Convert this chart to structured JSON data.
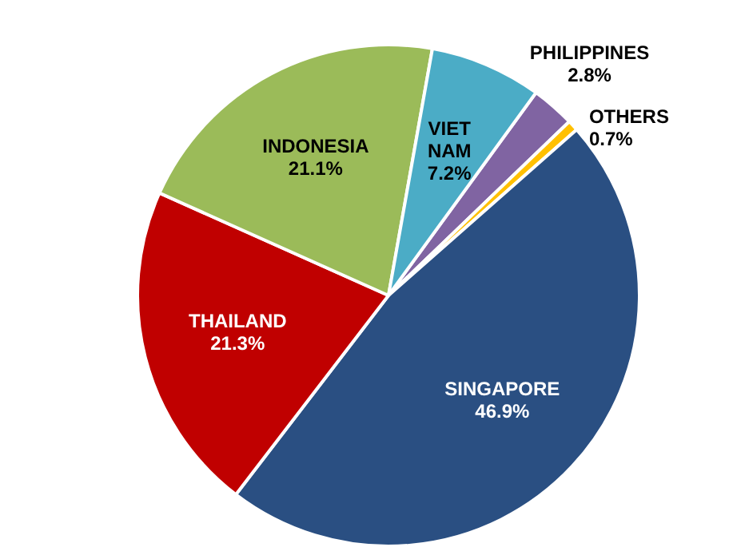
{
  "chart_data": {
    "type": "pie",
    "categories": [
      "PHILIPPINES",
      "OTHERS",
      "SINGAPORE",
      "THAILAND",
      "INDONESIA",
      "VIET NAM"
    ],
    "values": [
      2.8,
      0.7,
      46.9,
      21.3,
      21.1,
      7.2
    ],
    "colors": [
      "#8064a2",
      "#ffc000",
      "#2a4f82",
      "#c00000",
      "#9bbb59",
      "#4bacc6"
    ],
    "value_labels": [
      "2.8%",
      "0.7%",
      "46.9%",
      "21.3%",
      "21.1%",
      "7.2%"
    ],
    "legend": false
  }
}
